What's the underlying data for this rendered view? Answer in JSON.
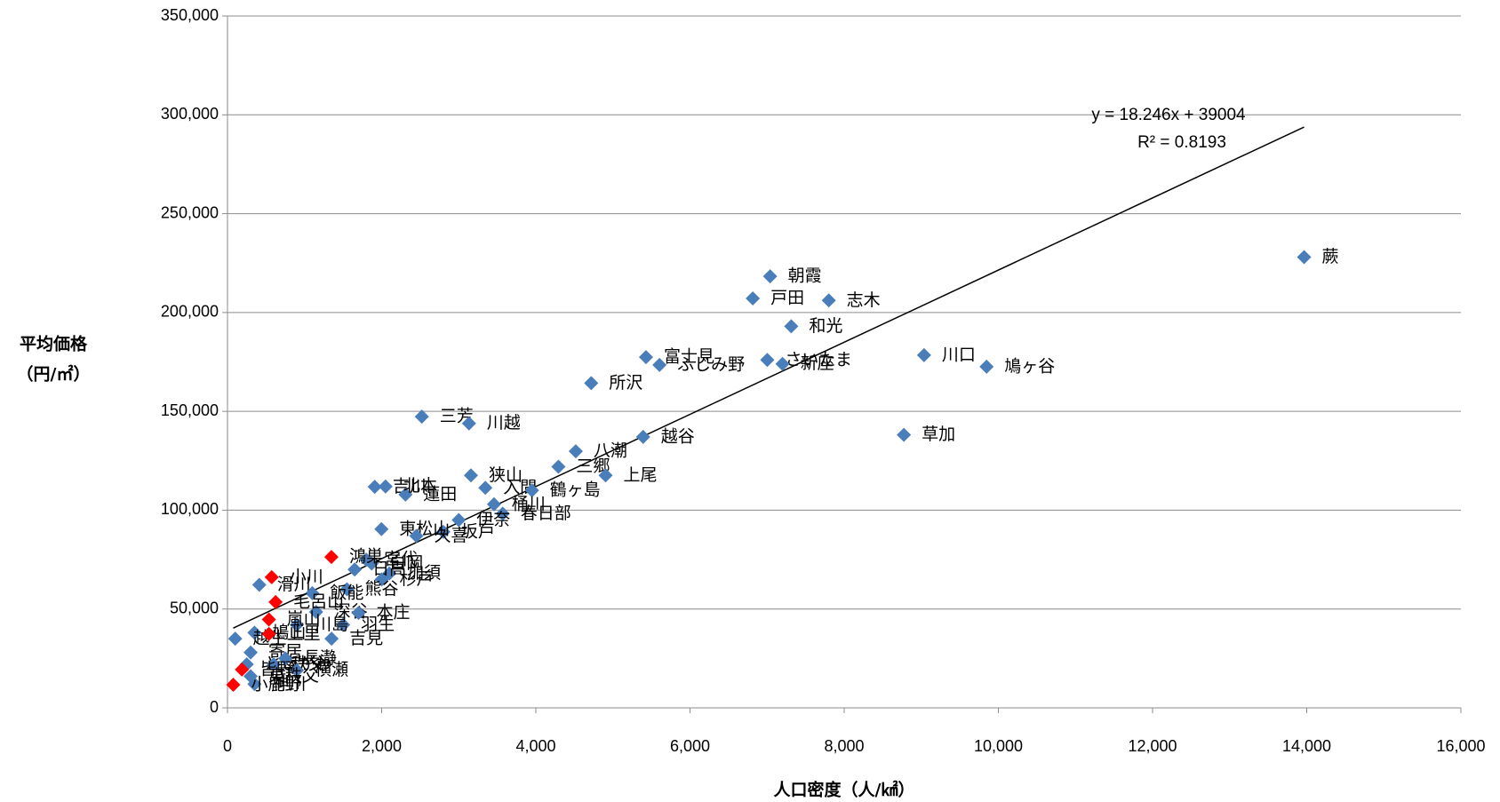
{
  "chart_data": {
    "type": "scatter",
    "x_label": "人口密度（人/㎢）",
    "y_label": [
      "平均価格",
      "（円/㎡）"
    ],
    "xlim": [
      0,
      16000
    ],
    "xticks": [
      0,
      {
        "value": 2000,
        "label": "2,000"
      },
      {
        "value": 4000,
        "label": "4,000"
      },
      {
        "value": 6000,
        "label": "6,000"
      },
      {
        "value": 8000,
        "label": "8,000"
      },
      {
        "value": 10000,
        "label": "10,000"
      },
      {
        "value": 12000,
        "label": "12,000"
      },
      {
        "value": 14000,
        "label": "14,000"
      },
      {
        "value": 16000,
        "label": "16,000"
      }
    ],
    "ylim": [
      0,
      350000
    ],
    "yticks": [
      0,
      {
        "value": 50000,
        "label": "50,000"
      },
      {
        "value": 100000,
        "label": "100,000"
      },
      {
        "value": 150000,
        "label": "150,000"
      },
      {
        "value": 200000,
        "label": "200,000"
      },
      {
        "value": 250000,
        "label": "250,000"
      },
      {
        "value": 300000,
        "label": "300,000"
      },
      {
        "value": 350000,
        "label": "350,000"
      }
    ],
    "grid": true,
    "series": [
      {
        "color": "#4a7ebb",
        "labels": [
          "蕨",
          "朝霞",
          "戸田",
          "志木",
          "和光",
          "川口",
          "鳩ヶ谷",
          "富士見",
          "さいたま",
          "新座",
          "ふじみ野",
          "所沢",
          "草加",
          "越谷",
          "三芳",
          "川越",
          "八潮",
          "三郷",
          "上尾",
          "狭山",
          "入間",
          "鶴ヶ島",
          "桶川",
          "春日部",
          "吉川",
          "蓮田",
          "北本",
          "坂戸",
          "伊奈",
          "東松山",
          "久喜",
          "宮代",
          "白岡",
          "加須",
          "日高",
          "杉戸",
          "熊谷",
          "滑川",
          "飯能",
          "深谷",
          "本庄",
          "羽生",
          "川島",
          "吉見",
          "鳩山",
          "越生",
          "寄居",
          "ときがわ",
          "秩父",
          "横瀬",
          "長瀞",
          "神川",
          "東秩父"
        ],
        "x": [
          13966,
          7039,
          6814,
          7800,
          7313,
          9036,
          9847,
          5429,
          7002,
          7200,
          5604,
          4718,
          8774,
          5392,
          2521,
          3133,
          4518,
          4293,
          4905,
          3158,
          3345,
          3950,
          3457,
          3570,
          1910,
          2309,
          2050,
          2800,
          3000,
          1997,
          2450,
          1800,
          1870,
          2100,
          1650,
          2000,
          1550,
          412,
          1100,
          1150,
          1700,
          1500,
          900,
          1350,
          350,
          100,
          300,
          250,
          600,
          900,
          750,
          350,
          300
        ],
        "values": [
          228000,
          218300,
          207100,
          206100,
          193000,
          178400,
          172600,
          177400,
          176000,
          174000,
          173500,
          164300,
          138100,
          137100,
          147300,
          143900,
          129800,
          122000,
          117600,
          117600,
          111300,
          110000,
          103000,
          98200,
          111800,
          107900,
          112000,
          89000,
          95000,
          90400,
          87000,
          75000,
          73000,
          68000,
          70000,
          65000,
          60000,
          62200,
          58000,
          48500,
          48000,
          42000,
          42000,
          35000,
          38000,
          35000,
          28000,
          22000,
          22000,
          19000,
          25000,
          12000,
          16000
        ]
      },
      {
        "color": "#ff0000",
        "labels": [
          "鴻巣",
          "小川",
          "毛呂山",
          "嵐山",
          "上里",
          "皆野",
          "小鹿野"
        ],
        "x": [
          1348,
          574,
          624,
          537,
          537,
          187,
          75
        ],
        "values": [
          76300,
          66100,
          53500,
          44700,
          37400,
          19400,
          11700
        ]
      }
    ],
    "trendline": {
      "slope": 18.246,
      "intercept": 39004,
      "equation": "y = 18.246x + 39004",
      "r2": "R² = 0.8193"
    }
  }
}
